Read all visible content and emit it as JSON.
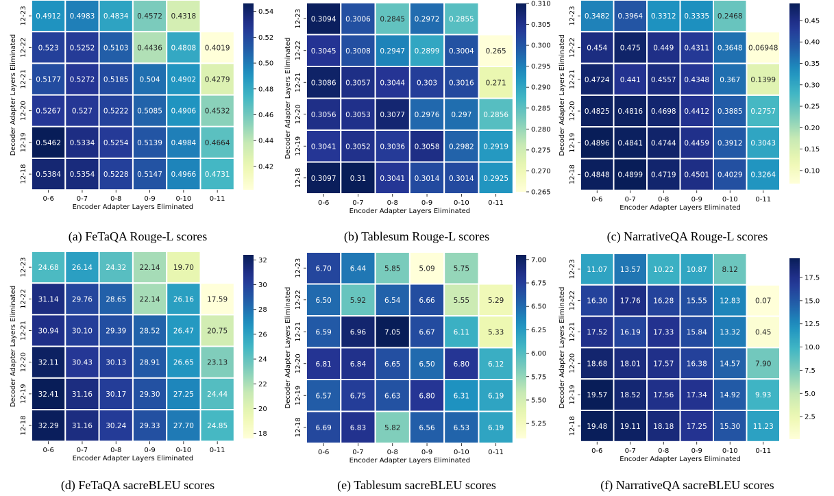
{
  "chart_data": [
    {
      "type": "heatmap",
      "caption": "(a) FeTaQA Rouge-L scores",
      "xlabel": "Encoder Adapter Layers Eliminated",
      "ylabel": "Decoder Adapter Layers Eliminated",
      "x_categories": [
        "0-6",
        "0-7",
        "0-8",
        "0-9",
        "0-10",
        "0-11"
      ],
      "y_categories": [
        "12-23",
        "12-22",
        "12-21",
        "12-20",
        "12-19",
        "12-18"
      ],
      "values": [
        [
          0.4912,
          0.4983,
          0.4834,
          0.4572,
          0.4318,
          null
        ],
        [
          0.523,
          0.5252,
          0.5103,
          0.4436,
          0.4808,
          0.4019
        ],
        [
          0.5177,
          0.5272,
          0.5185,
          0.504,
          0.4902,
          0.4279
        ],
        [
          0.5267,
          0.527,
          0.5222,
          0.5085,
          0.4906,
          0.4532
        ],
        [
          0.5462,
          0.5334,
          0.5254,
          0.5139,
          0.4984,
          0.4664
        ],
        [
          0.5384,
          0.5354,
          0.5228,
          0.5147,
          0.4966,
          0.4731
        ]
      ],
      "cell_labels": [
        [
          "0.4912",
          "0.4983",
          "0.4834",
          "0.4572",
          "0.4318",
          ""
        ],
        [
          "0.523",
          "0.5252",
          "0.5103",
          "0.4436",
          "0.4808",
          "0.4019"
        ],
        [
          "0.5177",
          "0.5272",
          "0.5185",
          "0.504",
          "0.4902",
          "0.4279"
        ],
        [
          "0.5267",
          "0.527",
          "0.5222",
          "0.5085",
          "0.4906",
          "0.4532"
        ],
        [
          "0.5462",
          "0.5334",
          "0.5254",
          "0.5139",
          "0.4984",
          "0.4664"
        ],
        [
          "0.5384",
          "0.5354",
          "0.5228",
          "0.5147",
          "0.4966",
          "0.4731"
        ]
      ],
      "colorbar": {
        "vmin": 0.4019,
        "vmax": 0.5462,
        "ticks": [
          "0.42",
          "0.44",
          "0.46",
          "0.48",
          "0.50",
          "0.52",
          "0.54"
        ]
      },
      "colormap": "YlGnBu"
    },
    {
      "type": "heatmap",
      "caption": "(b) Tablesum Rouge-L scores",
      "xlabel": "Encoder Adapter Layers Eliminated",
      "ylabel": "Decoder Adapter Layers Eliminated",
      "x_categories": [
        "0-6",
        "0-7",
        "0-8",
        "0-9",
        "0-10",
        "0-11"
      ],
      "y_categories": [
        "12-23",
        "12-22",
        "12-21",
        "12-20",
        "12-19",
        "12-18"
      ],
      "values": [
        [
          0.3094,
          0.3006,
          0.2845,
          0.2972,
          0.2855,
          null
        ],
        [
          0.3045,
          0.3008,
          0.2947,
          0.2899,
          0.3004,
          0.265
        ],
        [
          0.3086,
          0.3057,
          0.3044,
          0.303,
          0.3016,
          0.271
        ],
        [
          0.3056,
          0.3053,
          0.3077,
          0.2976,
          0.297,
          0.2856
        ],
        [
          0.3041,
          0.3052,
          0.3036,
          0.3058,
          0.2982,
          0.2919
        ],
        [
          0.3097,
          0.31,
          0.3041,
          0.3014,
          0.3014,
          0.2925
        ]
      ],
      "cell_labels": [
        [
          "0.3094",
          "0.3006",
          "0.2845",
          "0.2972",
          "0.2855",
          ""
        ],
        [
          "0.3045",
          "0.3008",
          "0.2947",
          "0.2899",
          "0.3004",
          "0.265"
        ],
        [
          "0.3086",
          "0.3057",
          "0.3044",
          "0.303",
          "0.3016",
          "0.271"
        ],
        [
          "0.3056",
          "0.3053",
          "0.3077",
          "0.2976",
          "0.297",
          "0.2856"
        ],
        [
          "0.3041",
          "0.3052",
          "0.3036",
          "0.3058",
          "0.2982",
          "0.2919"
        ],
        [
          "0.3097",
          "0.31",
          "0.3041",
          "0.3014",
          "0.3014",
          "0.2925"
        ]
      ],
      "colorbar": {
        "vmin": 0.265,
        "vmax": 0.31,
        "ticks": [
          "0.265",
          "0.270",
          "0.275",
          "0.280",
          "0.285",
          "0.290",
          "0.295",
          "0.300",
          "0.305",
          "0.310"
        ]
      },
      "colormap": "YlGnBu"
    },
    {
      "type": "heatmap",
      "caption": "(c) NarrativeQA Rouge-L scores",
      "xlabel": "Encoder Adapter Layers Eliminated",
      "ylabel": "Decoder Adapter Layers Eliminated",
      "x_categories": [
        "0-6",
        "0-7",
        "0-8",
        "0-9",
        "0-10",
        "0-11"
      ],
      "y_categories": [
        "12-23",
        "12-22",
        "12-21",
        "12-20",
        "12-19",
        "12-18"
      ],
      "values": [
        [
          0.3482,
          0.3964,
          0.3312,
          0.3335,
          0.2468,
          null
        ],
        [
          0.454,
          0.475,
          0.449,
          0.4311,
          0.3648,
          0.06948
        ],
        [
          0.4724,
          0.441,
          0.4557,
          0.4348,
          0.367,
          0.1399
        ],
        [
          0.4825,
          0.4816,
          0.4698,
          0.4412,
          0.3885,
          0.2757
        ],
        [
          0.4896,
          0.4841,
          0.4744,
          0.4459,
          0.3912,
          0.3043
        ],
        [
          0.4848,
          0.4899,
          0.4719,
          0.4501,
          0.4029,
          0.3264
        ]
      ],
      "cell_labels": [
        [
          "0.3482",
          "0.3964",
          "0.3312",
          "0.3335",
          "0.2468",
          ""
        ],
        [
          "0.454",
          "0.475",
          "0.449",
          "0.4311",
          "0.3648",
          "0.06948"
        ],
        [
          "0.4724",
          "0.441",
          "0.4557",
          "0.4348",
          "0.367",
          "0.1399"
        ],
        [
          "0.4825",
          "0.4816",
          "0.4698",
          "0.4412",
          "0.3885",
          "0.2757"
        ],
        [
          "0.4896",
          "0.4841",
          "0.4744",
          "0.4459",
          "0.3912",
          "0.3043"
        ],
        [
          "0.4848",
          "0.4899",
          "0.4719",
          "0.4501",
          "0.4029",
          "0.3264"
        ]
      ],
      "colorbar": {
        "vmin": 0.06948,
        "vmax": 0.4899,
        "ticks": [
          "0.10",
          "0.15",
          "0.20",
          "0.25",
          "0.30",
          "0.35",
          "0.40",
          "0.45"
        ]
      },
      "colormap": "YlGnBu"
    },
    {
      "type": "heatmap",
      "caption": "(d) FeTaQA sacreBLEU scores",
      "xlabel": "Encoder Adapter Layers Eliminated",
      "ylabel": "Decoder Adapter Layers Eliminated",
      "x_categories": [
        "0-6",
        "0-7",
        "0-8",
        "0-9",
        "0-10",
        "0-11"
      ],
      "y_categories": [
        "12-23",
        "12-22",
        "12-21",
        "12-20",
        "12-19",
        "12-18"
      ],
      "values": [
        [
          24.68,
          26.14,
          24.32,
          22.14,
          19.7,
          null
        ],
        [
          31.14,
          29.76,
          28.65,
          22.14,
          26.16,
          17.59
        ],
        [
          30.94,
          30.1,
          29.39,
          28.52,
          26.47,
          20.75
        ],
        [
          32.11,
          30.43,
          30.13,
          28.91,
          26.65,
          23.13
        ],
        [
          32.41,
          31.16,
          30.17,
          29.3,
          27.25,
          24.44
        ],
        [
          32.29,
          31.16,
          30.24,
          29.33,
          27.7,
          24.85
        ]
      ],
      "cell_labels": [
        [
          "24.68",
          "26.14",
          "24.32",
          "22.14",
          "19.70",
          ""
        ],
        [
          "31.14",
          "29.76",
          "28.65",
          "22.14",
          "26.16",
          "17.59"
        ],
        [
          "30.94",
          "30.10",
          "29.39",
          "28.52",
          "26.47",
          "20.75"
        ],
        [
          "32.11",
          "30.43",
          "30.13",
          "28.91",
          "26.65",
          "23.13"
        ],
        [
          "32.41",
          "31.16",
          "30.17",
          "29.30",
          "27.25",
          "24.44"
        ],
        [
          "32.29",
          "31.16",
          "30.24",
          "29.33",
          "27.70",
          "24.85"
        ]
      ],
      "colorbar": {
        "vmin": 17.59,
        "vmax": 32.41,
        "ticks": [
          "18",
          "20",
          "22",
          "24",
          "26",
          "28",
          "30",
          "32"
        ]
      },
      "colormap": "YlGnBu"
    },
    {
      "type": "heatmap",
      "caption": "(e) Tablesum sacreBLEU scores",
      "xlabel": "Encoder Adapter Layers Eliminated",
      "ylabel": "Decoder Adapter Layers Eliminated",
      "x_categories": [
        "0-6",
        "0-7",
        "0-8",
        "0-9",
        "0-10",
        "0-11"
      ],
      "y_categories": [
        "12-23",
        "12-22",
        "12-21",
        "12-20",
        "12-19",
        "12-18"
      ],
      "values": [
        [
          6.7,
          6.44,
          5.85,
          5.09,
          5.75,
          null
        ],
        [
          6.5,
          5.92,
          6.54,
          6.66,
          5.55,
          5.29
        ],
        [
          6.59,
          6.96,
          7.05,
          6.67,
          6.11,
          5.33
        ],
        [
          6.81,
          6.84,
          6.65,
          6.5,
          6.8,
          6.12
        ],
        [
          6.57,
          6.75,
          6.63,
          6.8,
          6.31,
          6.19
        ],
        [
          6.69,
          6.83,
          5.82,
          6.56,
          6.53,
          6.19
        ]
      ],
      "cell_labels": [
        [
          "6.70",
          "6.44",
          "5.85",
          "5.09",
          "5.75",
          ""
        ],
        [
          "6.50",
          "5.92",
          "6.54",
          "6.66",
          "5.55",
          "5.29"
        ],
        [
          "6.59",
          "6.96",
          "7.05",
          "6.67",
          "6.11",
          "5.33"
        ],
        [
          "6.81",
          "6.84",
          "6.65",
          "6.50",
          "6.80",
          "6.12"
        ],
        [
          "6.57",
          "6.75",
          "6.63",
          "6.80",
          "6.31",
          "6.19"
        ],
        [
          "6.69",
          "6.83",
          "5.82",
          "6.56",
          "6.53",
          "6.19"
        ]
      ],
      "colorbar": {
        "vmin": 5.09,
        "vmax": 7.05,
        "ticks": [
          "5.25",
          "5.50",
          "5.75",
          "6.00",
          "6.25",
          "6.50",
          "6.75",
          "7.00"
        ]
      },
      "colormap": "YlGnBu"
    },
    {
      "type": "heatmap",
      "caption": "(f) NarrativeQA sacreBLEU scores",
      "xlabel": "Encoder Adapter Layers Eliminated",
      "ylabel": "Decoder Adapter Layers Eliminated",
      "x_categories": [
        "0-6",
        "0-7",
        "0-8",
        "0-9",
        "0-10",
        "0-11"
      ],
      "y_categories": [
        "12-23",
        "12-22",
        "12-21",
        "12-20",
        "12-19",
        "12-18"
      ],
      "values": [
        [
          11.07,
          13.57,
          10.22,
          10.87,
          8.12,
          null
        ],
        [
          16.3,
          17.76,
          16.28,
          15.55,
          12.83,
          0.07
        ],
        [
          17.52,
          16.19,
          17.33,
          15.84,
          13.32,
          0.45
        ],
        [
          18.68,
          18.01,
          17.57,
          16.38,
          14.57,
          7.9
        ],
        [
          19.57,
          18.52,
          17.56,
          17.34,
          14.92,
          9.93
        ],
        [
          19.48,
          19.11,
          18.18,
          17.25,
          15.3,
          11.23
        ]
      ],
      "cell_labels": [
        [
          "11.07",
          "13.57",
          "10.22",
          "10.87",
          "8.12",
          ""
        ],
        [
          "16.30",
          "17.76",
          "16.28",
          "15.55",
          "12.83",
          "0.07"
        ],
        [
          "17.52",
          "16.19",
          "17.33",
          "15.84",
          "13.32",
          "0.45"
        ],
        [
          "18.68",
          "18.01",
          "17.57",
          "16.38",
          "14.57",
          "7.90"
        ],
        [
          "19.57",
          "18.52",
          "17.56",
          "17.34",
          "14.92",
          "9.93"
        ],
        [
          "19.48",
          "19.11",
          "18.18",
          "17.25",
          "15.30",
          "11.23"
        ]
      ],
      "colorbar": {
        "vmin": 0.07,
        "vmax": 19.57,
        "ticks": [
          "2.5",
          "5.0",
          "7.5",
          "10.0",
          "12.5",
          "15.0",
          "17.5"
        ]
      },
      "colormap": "YlGnBu"
    }
  ]
}
